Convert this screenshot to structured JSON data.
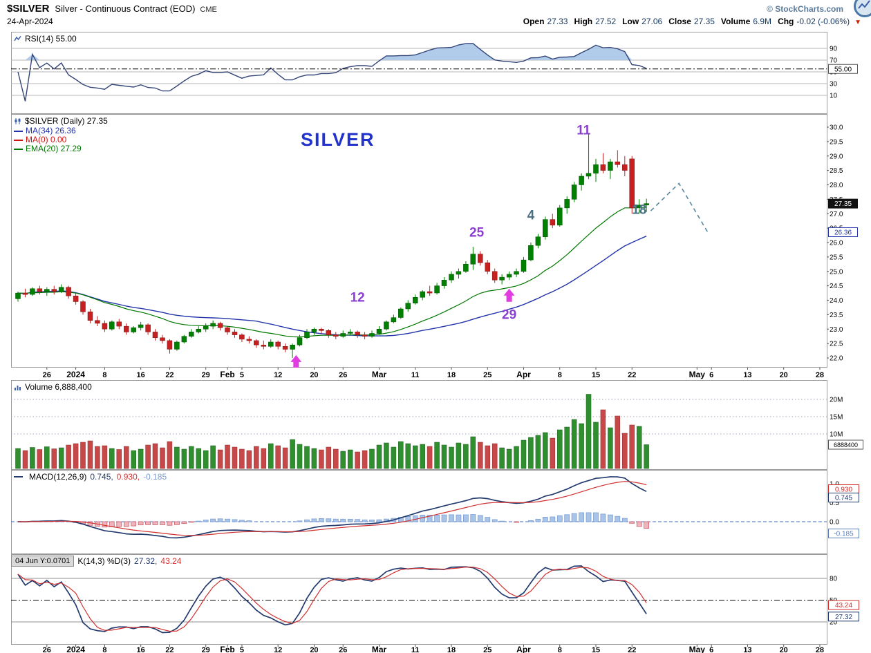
{
  "header": {
    "symbol": "$SILVER",
    "description": "Silver - Continuous Contract (EOD)",
    "exchange": "CME",
    "copyright": "© StockCharts.com",
    "date": "24-Apr-2024",
    "dropdown_glyph": "▼",
    "quote_items": [
      {
        "label": "Open",
        "value": "27.33"
      },
      {
        "label": "High",
        "value": "27.52"
      },
      {
        "label": "Low",
        "value": "27.06"
      },
      {
        "label": "Close",
        "value": "27.35"
      },
      {
        "label": "Volume",
        "value": "6.9M"
      },
      {
        "label": "Chg",
        "value": "-0.02 (-0.06%)"
      }
    ]
  },
  "rsi_panel": {
    "label": "RSI(14) 55.00",
    "current": 55,
    "badge": "55.00",
    "ticks": [
      90,
      70,
      50,
      30,
      10
    ],
    "overbought": 70,
    "line_color": "#334477",
    "fill_color": "#a9c7e8"
  },
  "price_panel": {
    "title": "$SILVER (Daily) 27.35",
    "legend": [
      {
        "label": "MA(34) 26.36",
        "color": "#2233aa"
      },
      {
        "label": "MA(0) 0.00",
        "color": "#cc1111"
      },
      {
        "label": "EMA(20) 27.29",
        "color": "#007700"
      }
    ],
    "watermark": "SILVER",
    "watermark_color": "#2233cc",
    "last_badge": "27.35",
    "last_value": 27.35,
    "ma_badge": "26.36",
    "ma_value": 26.36,
    "axis": {
      "tick_start": 22.0,
      "tick_end": 30.0,
      "tick_step": 0.5
    }
  },
  "volume_panel": {
    "label": "Volume 6,888,400",
    "badge": "6888400",
    "badge_value": 6.9,
    "ticks": [
      {
        "v": 20,
        "label": "20M"
      },
      {
        "v": 15,
        "label": "15M"
      },
      {
        "v": 10,
        "label": "10M"
      }
    ]
  },
  "macd_panel": {
    "name": "MACD(12,26,9)",
    "values": [
      {
        "text": "0.745,",
        "color": "#223a6e"
      },
      {
        "text": "0.930,",
        "color": "#d03030"
      },
      {
        "text": "-0.185",
        "color": "#7a9cd0"
      }
    ],
    "ticks": [
      {
        "label": "1.0",
        "v": 1.0
      },
      {
        "label": "0.5",
        "v": 0.5
      },
      {
        "label": "0.0",
        "v": 0.0
      }
    ],
    "badges": [
      {
        "text": "0.930",
        "color": "#d03030",
        "y": 28
      },
      {
        "text": "0.745",
        "color": "#223a6e",
        "y": 40
      },
      {
        "text": "-0.185",
        "color": "#5b7fb5",
        "y": 92
      }
    ]
  },
  "stoch_panel": {
    "tooltip": "04 Jun Y:0.0701",
    "name": "K(14,3) %D(3)",
    "k_text": "27.32,",
    "d_text": "43.24",
    "k_color": "#223a6e",
    "d_color": "#d03030",
    "ticks": [
      80,
      50,
      20
    ],
    "midline": 50,
    "badges": [
      {
        "text": "43.24",
        "color": "#d03030",
        "v": 43.24
      },
      {
        "text": "27.32",
        "color": "#223a6e",
        "v": 27.32
      }
    ]
  },
  "chart_data": {
    "type": "candlestick",
    "title": "$SILVER Silver - Continuous Contract (EOD) Daily",
    "price_axis": {
      "min": 21.8,
      "max": 30.3,
      "tick_step": 0.5,
      "tick_min": 22.0,
      "tick_max": 30.0
    },
    "x_ticks": [
      {
        "i": 4,
        "label": "26"
      },
      {
        "i": 8,
        "label": "2024",
        "bold": true
      },
      {
        "i": 12,
        "label": "8"
      },
      {
        "i": 17,
        "label": "16"
      },
      {
        "i": 21,
        "label": "22"
      },
      {
        "i": 26,
        "label": "29"
      },
      {
        "i": 29,
        "label": "Feb",
        "bold": true
      },
      {
        "i": 31,
        "label": "5"
      },
      {
        "i": 36,
        "label": "12"
      },
      {
        "i": 41,
        "label": "20"
      },
      {
        "i": 45,
        "label": "26"
      },
      {
        "i": 50,
        "label": "Mar",
        "bold": true
      },
      {
        "i": 55,
        "label": "11"
      },
      {
        "i": 60,
        "label": "18"
      },
      {
        "i": 65,
        "label": "25"
      },
      {
        "i": 70,
        "label": "Apr",
        "bold": true
      },
      {
        "i": 75,
        "label": "8"
      },
      {
        "i": 80,
        "label": "15"
      },
      {
        "i": 85,
        "label": "22"
      },
      {
        "i": 94,
        "label": "May",
        "bold": true
      },
      {
        "i": 96,
        "label": "6"
      },
      {
        "i": 101,
        "label": "13"
      },
      {
        "i": 106,
        "label": "20"
      },
      {
        "i": 111,
        "label": "28"
      }
    ],
    "ohlc": [
      [
        24.05,
        24.3,
        23.95,
        24.25
      ],
      [
        24.25,
        24.4,
        24.1,
        24.2
      ],
      [
        24.2,
        24.45,
        24.15,
        24.4
      ],
      [
        24.4,
        24.5,
        24.2,
        24.3
      ],
      [
        24.3,
        24.45,
        24.15,
        24.38
      ],
      [
        24.38,
        24.5,
        24.2,
        24.3
      ],
      [
        24.3,
        24.55,
        24.25,
        24.45
      ],
      [
        24.45,
        24.5,
        24.05,
        24.15
      ],
      [
        24.15,
        24.25,
        23.85,
        23.95
      ],
      [
        23.95,
        24.0,
        23.5,
        23.6
      ],
      [
        23.6,
        23.7,
        23.2,
        23.3
      ],
      [
        23.3,
        23.45,
        23.1,
        23.2
      ],
      [
        23.2,
        23.3,
        22.9,
        23.0
      ],
      [
        23.0,
        23.3,
        22.95,
        23.25
      ],
      [
        23.25,
        23.35,
        23.0,
        23.1
      ],
      [
        23.1,
        23.2,
        22.8,
        22.9
      ],
      [
        22.9,
        23.1,
        22.85,
        23.05
      ],
      [
        23.05,
        23.25,
        22.95,
        23.15
      ],
      [
        23.15,
        23.2,
        22.8,
        22.9
      ],
      [
        22.9,
        23.0,
        22.6,
        22.7
      ],
      [
        22.7,
        22.8,
        22.5,
        22.6
      ],
      [
        22.6,
        22.65,
        22.15,
        22.3
      ],
      [
        22.3,
        22.6,
        22.25,
        22.55
      ],
      [
        22.55,
        22.8,
        22.5,
        22.75
      ],
      [
        22.75,
        23.0,
        22.7,
        22.9
      ],
      [
        22.9,
        23.1,
        22.85,
        23.0
      ],
      [
        23.0,
        23.2,
        22.9,
        23.1
      ],
      [
        23.1,
        23.3,
        23.0,
        23.2
      ],
      [
        23.2,
        23.25,
        22.95,
        23.05
      ],
      [
        23.05,
        23.1,
        22.8,
        22.9
      ],
      [
        22.9,
        23.0,
        22.7,
        22.8
      ],
      [
        22.8,
        22.85,
        22.55,
        22.65
      ],
      [
        22.65,
        22.75,
        22.5,
        22.6
      ],
      [
        22.6,
        22.65,
        22.35,
        22.45
      ],
      [
        22.45,
        22.6,
        22.3,
        22.4
      ],
      [
        22.4,
        22.65,
        22.35,
        22.55
      ],
      [
        22.55,
        22.6,
        22.3,
        22.4
      ],
      [
        22.4,
        22.5,
        22.2,
        22.3
      ],
      [
        22.3,
        22.5,
        22.0,
        22.45
      ],
      [
        22.45,
        22.8,
        22.4,
        22.7
      ],
      [
        22.7,
        23.0,
        22.65,
        22.9
      ],
      [
        22.9,
        23.05,
        22.8,
        23.0
      ],
      [
        23.0,
        23.05,
        22.85,
        22.95
      ],
      [
        22.95,
        23.0,
        22.7,
        22.8
      ],
      [
        22.8,
        22.9,
        22.65,
        22.75
      ],
      [
        22.75,
        22.95,
        22.7,
        22.85
      ],
      [
        22.85,
        23.0,
        22.8,
        22.9
      ],
      [
        22.9,
        22.95,
        22.7,
        22.8
      ],
      [
        22.8,
        22.9,
        22.65,
        22.75
      ],
      [
        22.75,
        22.95,
        22.7,
        22.85
      ],
      [
        22.85,
        23.1,
        22.8,
        23.0
      ],
      [
        23.0,
        23.3,
        22.95,
        23.25
      ],
      [
        23.25,
        23.5,
        23.2,
        23.4
      ],
      [
        23.4,
        23.75,
        23.35,
        23.7
      ],
      [
        23.7,
        24.0,
        23.6,
        23.9
      ],
      [
        23.9,
        24.2,
        23.85,
        24.1
      ],
      [
        24.1,
        24.35,
        24.0,
        24.3
      ],
      [
        24.3,
        24.5,
        24.15,
        24.25
      ],
      [
        24.25,
        24.6,
        24.2,
        24.5
      ],
      [
        24.5,
        24.8,
        24.4,
        24.7
      ],
      [
        24.7,
        25.0,
        24.6,
        24.9
      ],
      [
        24.9,
        25.1,
        24.75,
        25.0
      ],
      [
        25.0,
        25.35,
        24.95,
        25.25
      ],
      [
        25.25,
        25.85,
        25.05,
        25.6
      ],
      [
        25.6,
        25.7,
        25.2,
        25.3
      ],
      [
        25.3,
        25.4,
        24.9,
        25.0
      ],
      [
        25.0,
        25.1,
        24.6,
        24.7
      ],
      [
        24.7,
        24.9,
        24.55,
        24.8
      ],
      [
        24.8,
        25.0,
        24.7,
        24.9
      ],
      [
        24.9,
        25.1,
        24.8,
        25.0
      ],
      [
        25.0,
        25.5,
        24.95,
        25.4
      ],
      [
        25.4,
        26.0,
        25.35,
        25.9
      ],
      [
        25.9,
        26.3,
        25.8,
        26.2
      ],
      [
        26.2,
        26.9,
        26.1,
        26.8
      ],
      [
        26.8,
        27.0,
        26.5,
        26.6
      ],
      [
        26.6,
        27.3,
        26.55,
        27.2
      ],
      [
        27.2,
        27.6,
        27.0,
        27.5
      ],
      [
        27.5,
        28.1,
        27.4,
        28.0
      ],
      [
        28.0,
        28.4,
        27.8,
        28.3
      ],
      [
        28.3,
        29.8,
        28.2,
        28.4
      ],
      [
        28.4,
        28.9,
        28.1,
        28.7
      ],
      [
        28.7,
        29.1,
        28.4,
        28.5
      ],
      [
        28.5,
        28.9,
        28.2,
        28.8
      ],
      [
        28.8,
        29.2,
        28.6,
        28.7
      ],
      [
        28.7,
        29.0,
        28.3,
        28.5
      ],
      [
        28.9,
        29.0,
        27.0,
        27.2
      ],
      [
        27.2,
        27.5,
        27.0,
        27.3
      ],
      [
        27.3,
        27.52,
        27.06,
        27.35
      ]
    ],
    "volume_m": [
      5.8,
      5.2,
      6.1,
      5.5,
      6.3,
      5.7,
      6.0,
      6.8,
      7.2,
      7.6,
      8.0,
      6.4,
      6.6,
      5.8,
      5.5,
      6.4,
      5.2,
      5.6,
      6.8,
      7.2,
      6.0,
      7.8,
      6.2,
      5.6,
      6.4,
      5.8,
      5.2,
      6.6,
      5.4,
      6.8,
      6.2,
      5.6,
      5.2,
      6.4,
      5.8,
      7.2,
      6.6,
      6.0,
      8.4,
      7.0,
      6.4,
      5.8,
      5.4,
      6.2,
      5.6,
      5.0,
      5.4,
      4.8,
      5.2,
      5.6,
      6.8,
      7.4,
      6.2,
      7.8,
      7.2,
      6.6,
      7.0,
      6.4,
      7.6,
      6.8,
      6.2,
      7.4,
      7.0,
      9.2,
      7.6,
      6.6,
      7.2,
      6.0,
      5.6,
      6.4,
      8.2,
      9.0,
      9.6,
      10.4,
      8.8,
      11.2,
      12.0,
      14.2,
      13.0,
      21.5,
      13.4,
      17.0,
      11.8,
      15.2,
      10.2,
      12.6,
      12.2,
      6.9
    ],
    "annotations": [
      {
        "i": 47,
        "price": 23.95,
        "text": "12",
        "color": "#8a3fd1"
      },
      {
        "i": 63.5,
        "price": 26.2,
        "text": "25",
        "color": "#8a3fd1"
      },
      {
        "i": 68,
        "price": 23.35,
        "text": "29",
        "color": "#8a3fd1"
      },
      {
        "i": 71,
        "price": 26.8,
        "text": "4",
        "color": "#4a7086"
      },
      {
        "i": 78.3,
        "price": 29.75,
        "text": "11",
        "color": "#8a3fd1"
      },
      {
        "i": 86,
        "price": 27.0,
        "text": "18",
        "color": "#4a7086"
      }
    ],
    "arrows": [
      {
        "i": 38.5,
        "price": 22.1
      },
      {
        "i": 68,
        "price": 24.4
      }
    ],
    "arrow_color": "#e03ce0",
    "projection": {
      "points": [
        [
          87.6,
          27.1
        ],
        [
          91.5,
          28.05
        ],
        [
          95.5,
          26.35
        ]
      ],
      "color": "#5588a0"
    },
    "indicator_params": {
      "rsi": 14,
      "ema": 20,
      "sma": 34,
      "macd": [
        12,
        26,
        9
      ],
      "stoch": [
        14,
        3,
        3
      ]
    }
  }
}
